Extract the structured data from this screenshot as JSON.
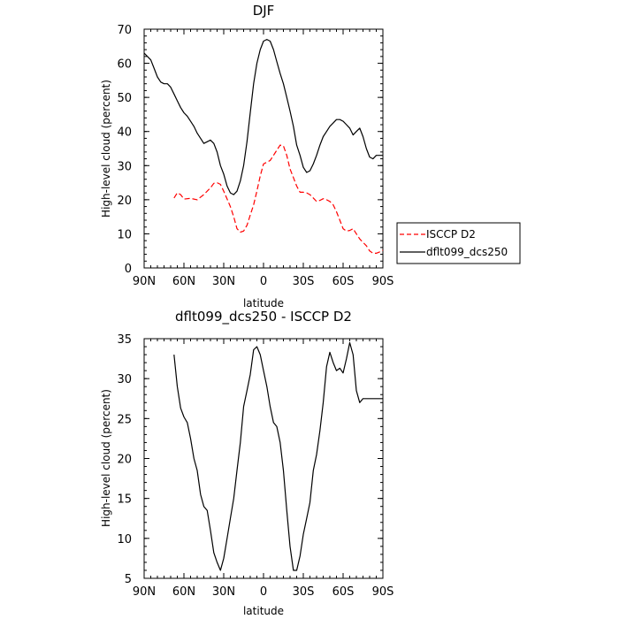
{
  "colors": {
    "isccp": "#ff0000",
    "model": "#000000"
  },
  "chart_data": [
    {
      "type": "line",
      "title": "DJF",
      "xlabel": "latitude",
      "ylabel": "High-level cloud (percent)",
      "xlim": [
        90,
        -90
      ],
      "ylim": [
        0,
        70
      ],
      "x_ticks": [
        90,
        60,
        30,
        0,
        -30,
        -60,
        -90
      ],
      "x_tick_labels": [
        "90N",
        "60N",
        "30N",
        "0",
        "30S",
        "60S",
        "90S"
      ],
      "y_ticks": [
        0,
        10,
        20,
        30,
        40,
        50,
        60,
        70
      ],
      "y_tick_labels": [
        "0",
        "10",
        "20",
        "30",
        "40",
        "50",
        "60",
        "70"
      ],
      "legend": {
        "placement": "outside-right",
        "entries": [
          "ISCCP D2",
          "dflt099_dcs250"
        ]
      },
      "series": [
        {
          "name": "ISCCP D2",
          "color": "#ff0000",
          "dash": "dashed",
          "x": [
            67.5,
            65,
            62.5,
            60,
            55,
            50,
            45,
            40,
            37.5,
            35,
            32.5,
            30,
            25,
            22.5,
            20,
            17.5,
            15,
            12.5,
            10,
            7.5,
            5,
            2.5,
            0,
            -2.5,
            -5,
            -7.5,
            -10,
            -12.5,
            -15,
            -17.5,
            -20,
            -22.5,
            -25,
            -27.5,
            -30,
            -32.5,
            -35,
            -37.5,
            -40,
            -42.5,
            -45,
            -47.5,
            -50,
            -52.5,
            -55,
            -57.5,
            -60,
            -62.5,
            -65,
            -67.5,
            -70,
            -72.5,
            -75,
            -77.5,
            -80,
            -82.5,
            -85,
            -87.5,
            -90
          ],
          "y": [
            20.5,
            22,
            21.5,
            20.2,
            20.4,
            20,
            21.5,
            23.5,
            24.8,
            25,
            24.5,
            22.5,
            18,
            15,
            11.5,
            10.5,
            10.8,
            12.5,
            15.5,
            18.5,
            22.5,
            27,
            30.5,
            31,
            31.5,
            33,
            34.5,
            36,
            35.8,
            33,
            29,
            26.5,
            24,
            22.2,
            22.2,
            22,
            21.5,
            20.5,
            19.5,
            19.8,
            20.3,
            20,
            19.5,
            18.5,
            16.5,
            14,
            11.5,
            10.8,
            11,
            11.5,
            10,
            8.5,
            7.5,
            6.5,
            5,
            4.3,
            4.3,
            4.7,
            5.2
          ]
        },
        {
          "name": "dflt099_dcs250",
          "color": "#000000",
          "dash": "solid",
          "x": [
            90,
            87.5,
            85,
            82.5,
            80,
            77.5,
            75,
            72.5,
            70,
            67.5,
            65,
            62.5,
            60,
            57.5,
            55,
            52.5,
            50,
            47.5,
            45,
            42.5,
            40,
            37.5,
            35,
            32.5,
            30,
            27.5,
            25,
            22.5,
            20,
            17.5,
            15,
            12.5,
            10,
            7.5,
            5,
            2.5,
            0,
            -2.5,
            -5,
            -7.5,
            -10,
            -12.5,
            -15,
            -17.5,
            -20,
            -22.5,
            -25,
            -27.5,
            -30,
            -32.5,
            -35,
            -37.5,
            -40,
            -42.5,
            -45,
            -47.5,
            -50,
            -52.5,
            -55,
            -57.5,
            -60,
            -62.5,
            -65,
            -67.5,
            -70,
            -72.5,
            -75,
            -77.5,
            -80,
            -82.5,
            -85,
            -87.5,
            -90
          ],
          "y": [
            63,
            62,
            61,
            58.5,
            56,
            54.5,
            54,
            54,
            53,
            51,
            49,
            47,
            45.5,
            44.5,
            43,
            41.5,
            39.5,
            38,
            36.5,
            37,
            37.5,
            36.5,
            34,
            30,
            27.5,
            24,
            22,
            21.5,
            22.5,
            25.5,
            30,
            37,
            45.5,
            54,
            60,
            64,
            66.5,
            67,
            66.5,
            64,
            60.5,
            57,
            54,
            50,
            46,
            41.5,
            36,
            33,
            29.5,
            28,
            28.5,
            30.5,
            33,
            36,
            38.5,
            40,
            41.5,
            42.5,
            43.5,
            43.5,
            43,
            42,
            41,
            39,
            40,
            41,
            38.5,
            35,
            32.5,
            32,
            33,
            33,
            33
          ]
        }
      ]
    },
    {
      "type": "line",
      "title": "dflt099_dcs250 - ISCCP D2",
      "xlabel": "latitude",
      "ylabel": "High-level cloud (percent)",
      "xlim": [
        90,
        -90
      ],
      "ylim": [
        5,
        35
      ],
      "x_ticks": [
        90,
        60,
        30,
        0,
        -30,
        -60,
        -90
      ],
      "x_tick_labels": [
        "90N",
        "60N",
        "30N",
        "0",
        "30S",
        "60S",
        "90S"
      ],
      "y_ticks": [
        5,
        10,
        15,
        20,
        25,
        30,
        35
      ],
      "y_tick_labels": [
        "5",
        "10",
        "15",
        "20",
        "25",
        "30",
        "35"
      ],
      "series": [
        {
          "color": "#000000",
          "dash": "solid",
          "x": [
            67.5,
            65,
            62.5,
            60,
            57.5,
            55,
            52.5,
            50,
            47.5,
            45,
            42.5,
            40,
            37.5,
            35,
            32.5,
            30,
            27.5,
            25,
            22.5,
            20,
            17.5,
            15,
            12.5,
            10,
            7.5,
            5,
            2.5,
            0,
            -2.5,
            -5,
            -7.5,
            -10,
            -12.5,
            -15,
            -17.5,
            -20,
            -22.5,
            -25,
            -27.5,
            -30,
            -32.5,
            -35,
            -37.5,
            -40,
            -42.5,
            -45,
            -47.5,
            -50,
            -52.5,
            -55,
            -57.5,
            -60,
            -62.5,
            -65,
            -67.5,
            -70,
            -72.5,
            -75,
            -77.5,
            -80,
            -82.5,
            -85,
            -87.5,
            -90
          ],
          "y": [
            33,
            29,
            26.3,
            25.2,
            24.5,
            22.5,
            20,
            18.5,
            15.5,
            14,
            13.5,
            11,
            8.2,
            7,
            6,
            7.5,
            10,
            12.5,
            15,
            18.5,
            22,
            26.5,
            28.5,
            30.5,
            33.6,
            34,
            33,
            31,
            29,
            26.5,
            24.5,
            24,
            22,
            18.5,
            13.5,
            9,
            6,
            6,
            7.8,
            10.5,
            12.5,
            14.5,
            18.5,
            20.5,
            23.5,
            27,
            31.5,
            33.3,
            32,
            31,
            31.3,
            30.7,
            32.5,
            34.5,
            33,
            28.5,
            27,
            27.5,
            27.5,
            27.5,
            27.5,
            27.5,
            27.5,
            27.5
          ]
        }
      ]
    }
  ]
}
